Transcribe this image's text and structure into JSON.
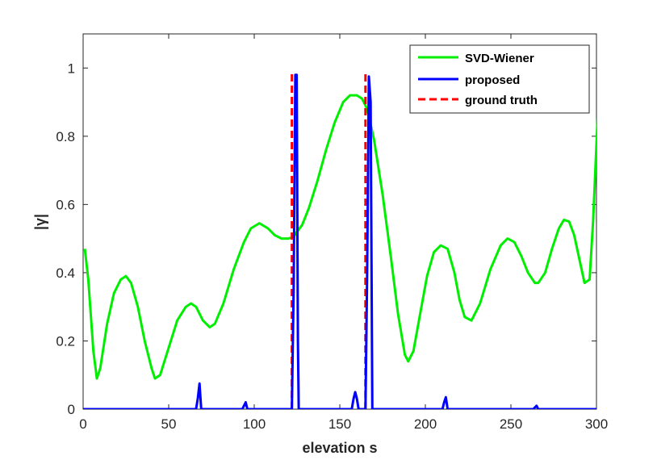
{
  "chart_data": {
    "type": "line",
    "xlabel": "elevation s",
    "ylabel": "|γ|",
    "xlim": [
      0,
      300
    ],
    "ylim": [
      0,
      1.1
    ],
    "xticks": [
      0,
      50,
      100,
      150,
      200,
      250,
      300
    ],
    "yticks": [
      0,
      0.2,
      0.4,
      0.6,
      0.8,
      1
    ],
    "ytick_labels": [
      "0",
      "0.2",
      "0.4",
      "0.6",
      "0.8",
      "1"
    ],
    "grid": false,
    "legend_position": "top-right",
    "series": [
      {
        "name": "SVD-Wiener",
        "color": "#00ee00",
        "style": "solid",
        "x": [
          1,
          3,
          6,
          8,
          10,
          14,
          18,
          22,
          25,
          28,
          32,
          36,
          40,
          42,
          45,
          50,
          55,
          60,
          63,
          66,
          70,
          74,
          77,
          82,
          88,
          94,
          98,
          103,
          108,
          112,
          116,
          120,
          123,
          125,
          128,
          132,
          137,
          142,
          147,
          152,
          156,
          160,
          163,
          166,
          170,
          175,
          180,
          184,
          188,
          190,
          193,
          197,
          201,
          205,
          209,
          213,
          217,
          220,
          223,
          227,
          232,
          238,
          244,
          248,
          252,
          256,
          260,
          264,
          266,
          270,
          274,
          278,
          281,
          284,
          287,
          290,
          293,
          296,
          298,
          301
        ],
        "y": [
          0.47,
          0.38,
          0.17,
          0.09,
          0.12,
          0.25,
          0.34,
          0.38,
          0.39,
          0.37,
          0.3,
          0.2,
          0.12,
          0.09,
          0.1,
          0.18,
          0.26,
          0.3,
          0.31,
          0.3,
          0.26,
          0.24,
          0.25,
          0.31,
          0.41,
          0.49,
          0.53,
          0.545,
          0.53,
          0.51,
          0.5,
          0.5,
          0.505,
          0.52,
          0.54,
          0.59,
          0.67,
          0.76,
          0.84,
          0.9,
          0.92,
          0.92,
          0.91,
          0.88,
          0.79,
          0.63,
          0.44,
          0.28,
          0.16,
          0.14,
          0.17,
          0.28,
          0.39,
          0.46,
          0.48,
          0.47,
          0.4,
          0.32,
          0.27,
          0.26,
          0.31,
          0.41,
          0.48,
          0.5,
          0.49,
          0.45,
          0.4,
          0.37,
          0.37,
          0.4,
          0.47,
          0.53,
          0.555,
          0.55,
          0.51,
          0.44,
          0.37,
          0.38,
          0.55,
          0.89
        ]
      },
      {
        "name": "proposed",
        "color": "#0000ff",
        "style": "solid",
        "x": [
          0,
          66,
          67,
          68,
          69,
          93,
          94,
          95,
          96,
          122,
          123,
          124,
          124.8,
          125.5,
          126,
          157,
          158,
          159,
          160,
          161,
          165,
          166,
          167,
          168,
          169,
          210,
          211,
          212,
          213,
          263,
          264,
          265,
          266,
          300
        ],
        "y": [
          0,
          0,
          0.03,
          0.075,
          0,
          0,
          0.01,
          0.02,
          0,
          0,
          0.35,
          0.98,
          0.98,
          0.2,
          0,
          0,
          0.03,
          0.05,
          0.03,
          0,
          0,
          0.4,
          0.975,
          0.9,
          0,
          0,
          0.02,
          0.035,
          0,
          0,
          0.005,
          0.01,
          0,
          0
        ]
      },
      {
        "name": "ground truth",
        "color": "#ff0000",
        "style": "dashed",
        "vlines": [
          {
            "x": 122,
            "ymin": 0,
            "ymax": 0.99
          },
          {
            "x": 165,
            "ymin": 0,
            "ymax": 0.99
          }
        ]
      }
    ]
  }
}
